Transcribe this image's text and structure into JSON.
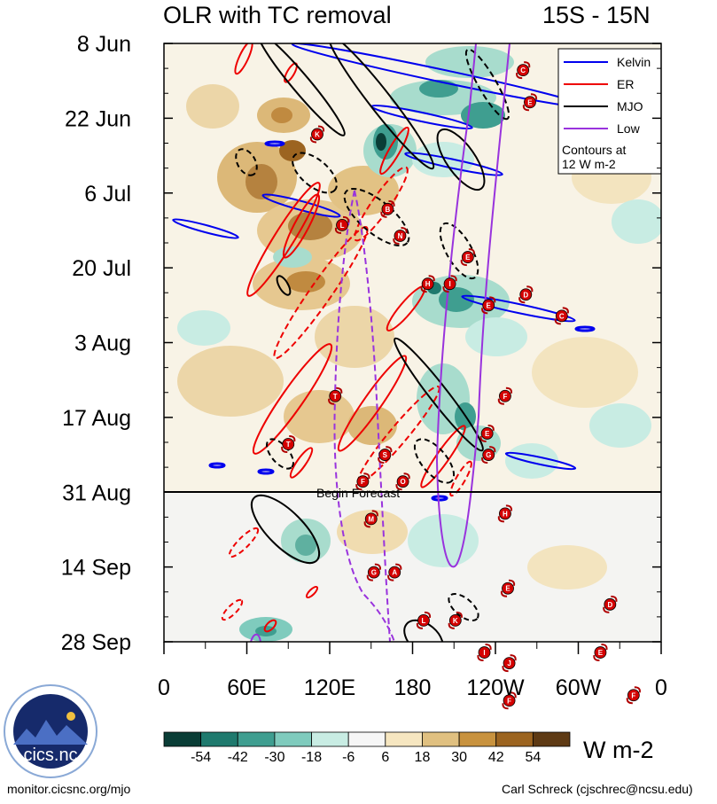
{
  "chart_data": {
    "type": "heatmap",
    "title": "OLR with TC removal",
    "region": "15S - 15N",
    "y_tick_labels": [
      "8 Jun",
      "22 Jun",
      "6 Jul",
      "20 Jul",
      "3 Aug",
      "17 Aug",
      "31 Aug",
      "14 Sep",
      "28 Sep"
    ],
    "x_tick_labels": [
      "0",
      "60E",
      "120E",
      "180",
      "120W",
      "60W",
      "0"
    ],
    "x_range_degrees_east": [
      0,
      360
    ],
    "time_range": [
      "8 Jun",
      "28 Sep"
    ],
    "forecast_start": "31 Aug",
    "forecast_label": "Begin Forecast",
    "legend": [
      {
        "name": "Kelvin",
        "color": "#0000ee"
      },
      {
        "name": "ER",
        "color": "#ee0000"
      },
      {
        "name": "MJO",
        "color": "#000000"
      },
      {
        "name": "Low",
        "color": "#9933dd"
      }
    ],
    "contour_note": "Contours at\n12 W m-2",
    "colorbar": {
      "unit": "W m-2",
      "ticks": [
        "-54",
        "-42",
        "-30",
        "-18",
        "-6",
        "6",
        "18",
        "30",
        "42",
        "54"
      ],
      "colors": [
        "#0a3d36",
        "#1f7a6e",
        "#3f9e90",
        "#7fcbbd",
        "#c8ece3",
        "#f6f6f6",
        "#f6e6c0",
        "#e0c080",
        "#c8923e",
        "#9c6420",
        "#5e3a14"
      ]
    },
    "tropical_cyclones": [
      {
        "letter": "C",
        "lon": 260,
        "day": 5
      },
      {
        "letter": "E",
        "lon": 265,
        "day": 11
      },
      {
        "letter": "K",
        "lon": 111,
        "day": 17
      },
      {
        "letter": "B",
        "lon": 162,
        "day": 31
      },
      {
        "letter": "L",
        "lon": 129,
        "day": 34
      },
      {
        "letter": "N",
        "lon": 171,
        "day": 36
      },
      {
        "letter": "E",
        "lon": 220,
        "day": 40
      },
      {
        "letter": "H",
        "lon": 191,
        "day": 45
      },
      {
        "letter": "I",
        "lon": 207,
        "day": 45
      },
      {
        "letter": "D",
        "lon": 262,
        "day": 47
      },
      {
        "letter": "E",
        "lon": 235,
        "day": 49
      },
      {
        "letter": "C",
        "lon": 288,
        "day": 51
      },
      {
        "letter": "T",
        "lon": 124,
        "day": 66
      },
      {
        "letter": "F",
        "lon": 247,
        "day": 66
      },
      {
        "letter": "E",
        "lon": 234,
        "day": 73
      },
      {
        "letter": "T",
        "lon": 90,
        "day": 75
      },
      {
        "letter": "G",
        "lon": 235,
        "day": 77
      },
      {
        "letter": "S",
        "lon": 160,
        "day": 77
      },
      {
        "letter": "F",
        "lon": 144,
        "day": 82
      },
      {
        "letter": "O",
        "lon": 173,
        "day": 82
      },
      {
        "letter": "H",
        "lon": 247,
        "day": 88
      },
      {
        "letter": "M",
        "lon": 150,
        "day": 89
      },
      {
        "letter": "G",
        "lon": 152,
        "day": 99
      },
      {
        "letter": "A",
        "lon": 167,
        "day": 99
      },
      {
        "letter": "E",
        "lon": 249,
        "day": 102
      },
      {
        "letter": "D",
        "lon": 323,
        "day": 105
      },
      {
        "letter": "L",
        "lon": 188,
        "day": 108
      },
      {
        "letter": "K",
        "lon": 211,
        "day": 108
      },
      {
        "letter": "E",
        "lon": 316,
        "day": 114
      },
      {
        "letter": "I",
        "lon": 232,
        "day": 114
      },
      {
        "letter": "J",
        "lon": 250,
        "day": 116
      },
      {
        "letter": "F",
        "lon": 340,
        "day": 122
      },
      {
        "letter": "F",
        "lon": 250,
        "day": 123
      }
    ]
  },
  "footer": {
    "logo_text": "cics.nc",
    "url": "monitor.cicsnc.org/mjo",
    "author": "Carl Schreck (cjschrec@ncsu.edu)"
  }
}
